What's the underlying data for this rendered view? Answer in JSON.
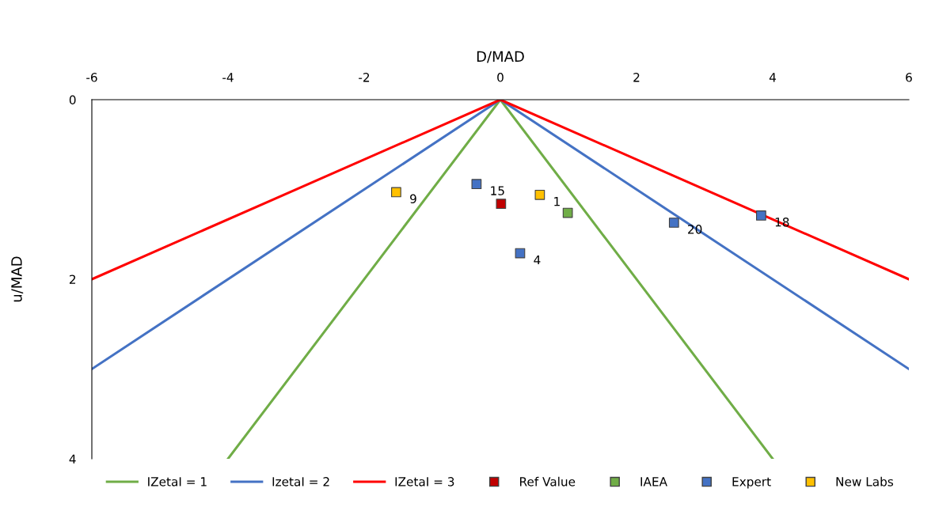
{
  "chart_data": {
    "type": "line",
    "xlabel": "D/MAD",
    "ylabel": "u/MAD",
    "xlim": [
      -6,
      6
    ],
    "xticks": [
      -6,
      -4,
      -2,
      0,
      2,
      4,
      6
    ],
    "ylim": [
      4,
      0
    ],
    "yticks": [
      0,
      2,
      4
    ],
    "grid": false,
    "legend": "bottom",
    "series": [
      {
        "name": "IZetaI = 1",
        "color": "#70ad47",
        "x": [
          -4,
          0,
          4
        ],
        "values": [
          4,
          0,
          4
        ]
      },
      {
        "name": "IzetaI = 2",
        "color": "#4472c4",
        "x": [
          -6,
          0,
          6
        ],
        "values": [
          3,
          0,
          3
        ]
      },
      {
        "name": "IZetaI = 3",
        "color": "#ff0000",
        "x": [
          -6,
          0,
          6
        ],
        "values": [
          2,
          0,
          2
        ]
      },
      {
        "name": "Ref Value",
        "type": "scatter",
        "marker": "square",
        "color": "#c00000",
        "x": [
          0.01
        ],
        "values": [
          1.16
        ]
      },
      {
        "name": "IAEA",
        "type": "scatter",
        "marker": "square",
        "color": "#70ad47",
        "x": [
          0.99
        ],
        "values": [
          1.26
        ]
      },
      {
        "name": "Expert",
        "type": "scatter",
        "marker": "square",
        "color": "#4472c4",
        "x": [
          -0.35,
          0.29,
          2.55,
          3.83
        ],
        "values": [
          0.94,
          1.71,
          1.37,
          1.29
        ]
      },
      {
        "name": "New Labs",
        "type": "scatter",
        "marker": "square",
        "color": "#ffc000",
        "x": [
          -1.53,
          0.58
        ],
        "values": [
          1.03,
          1.06
        ]
      }
    ],
    "annotations": [
      {
        "text": "15",
        "x": -0.35,
        "y": 0.94
      },
      {
        "text": "4",
        "x": 0.29,
        "y": 1.71
      },
      {
        "text": "20",
        "x": 2.55,
        "y": 1.37
      },
      {
        "text": "18",
        "x": 3.83,
        "y": 1.29
      },
      {
        "text": "9",
        "x": -1.53,
        "y": 1.03
      },
      {
        "text": "1",
        "x": 0.58,
        "y": 1.06
      }
    ]
  }
}
